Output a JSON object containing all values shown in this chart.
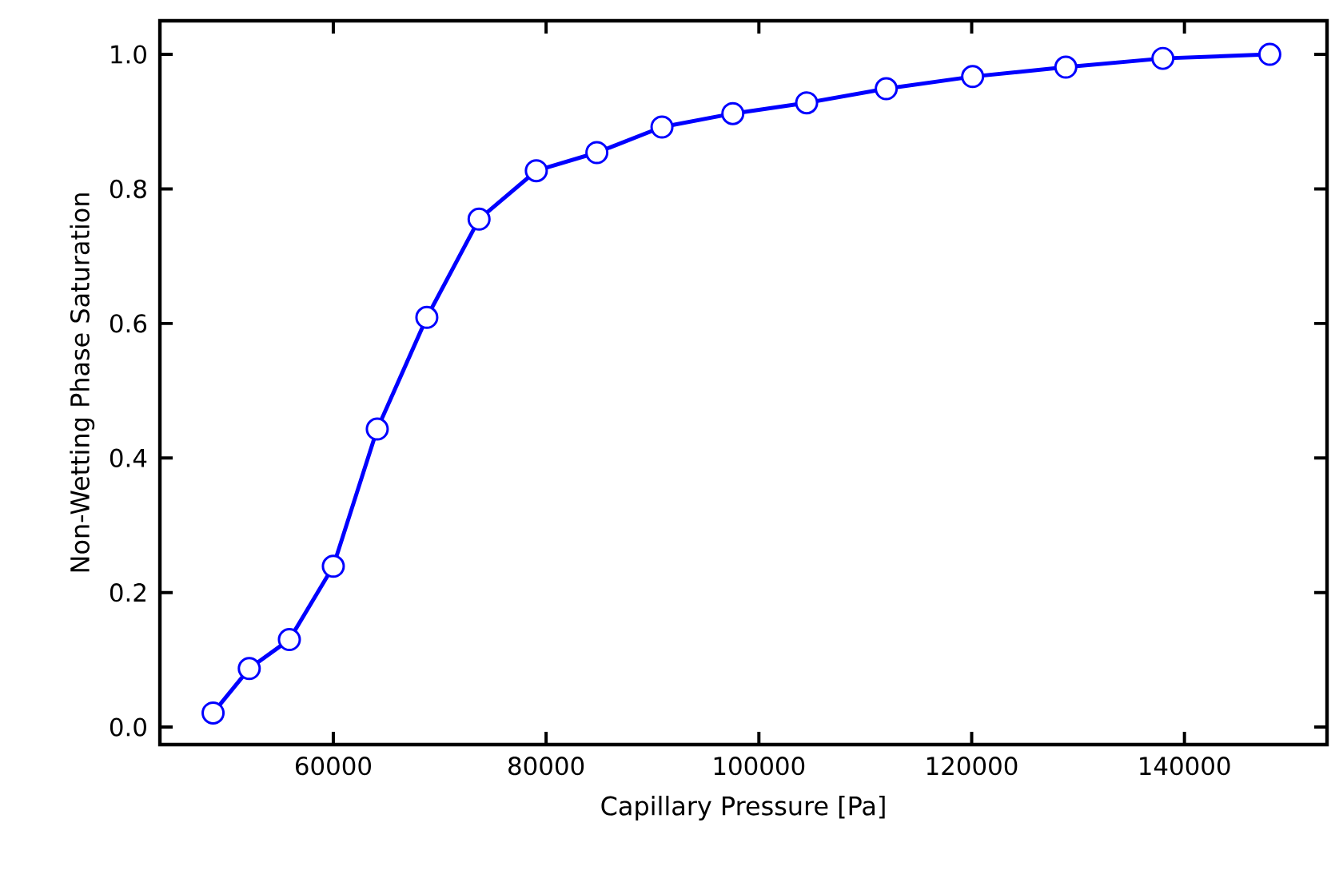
{
  "chart_data": {
    "type": "line",
    "xlabel": "Capillary Pressure [Pa]",
    "ylabel": "Non-Wetting Phase Saturation",
    "x": [
      48700,
      52100,
      55870,
      60000,
      64130,
      68790,
      73700,
      79080,
      84770,
      90890,
      97550,
      104490,
      111970,
      120090,
      128850,
      137970,
      148020
    ],
    "series": [
      {
        "color": "#0000ff",
        "values": [
          0.021,
          0.087,
          0.13,
          0.239,
          0.443,
          0.609,
          0.755,
          0.827,
          0.854,
          0.892,
          0.912,
          0.928,
          0.949,
          0.967,
          0.981,
          0.994,
          1.0
        ]
      }
    ],
    "xlim": [
      43700,
      153400
    ],
    "ylim": [
      -0.026,
      1.05
    ],
    "xticks": [
      60000,
      80000,
      100000,
      120000,
      140000
    ],
    "yticks": [
      {
        "value": 0,
        "label": "0.0"
      },
      0.2,
      0.4,
      0.6,
      0.8,
      {
        "value": 1,
        "label": "1.0"
      }
    ],
    "marker": "circle",
    "line_style": "solid"
  }
}
